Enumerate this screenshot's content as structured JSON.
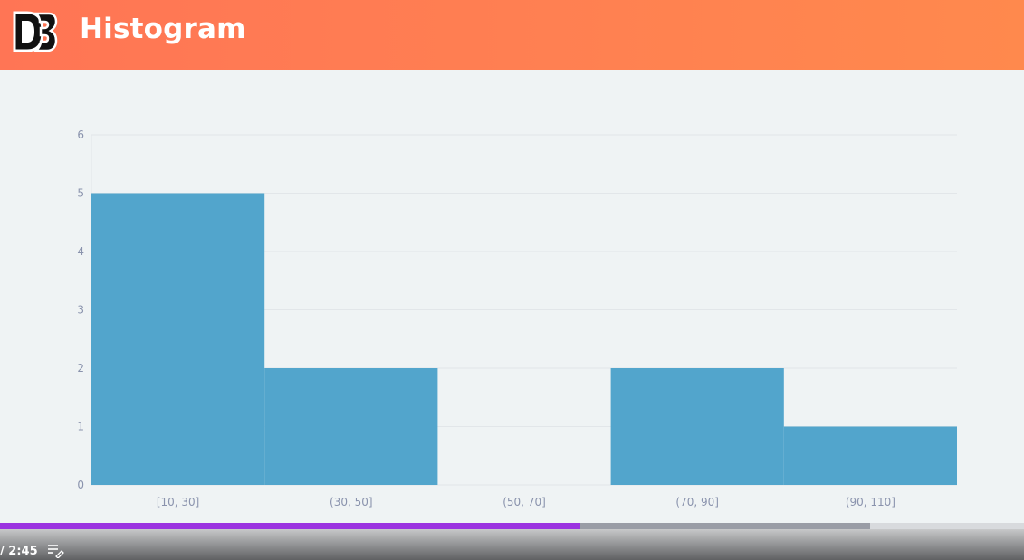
{
  "header": {
    "title": "Histogram",
    "logo_icon": "d3-logo-icon"
  },
  "chart_data": {
    "type": "bar",
    "categories": [
      "[10, 30]",
      "(30, 50]",
      "(50, 70]",
      "(70, 90]",
      "(90, 110]"
    ],
    "values": [
      5,
      2,
      0,
      2,
      1
    ],
    "ylim": [
      0,
      6
    ],
    "yticks": [
      "0",
      "1",
      "2",
      "3",
      "4",
      "5",
      "6"
    ],
    "grid": true,
    "bar_color": "#52a5cc"
  },
  "player": {
    "time_text": "/ 2:45",
    "played_fraction": 0.567,
    "buffered_fraction": 0.85,
    "notes_icon": "playlist-edit-icon",
    "played_color": "#9b33e0"
  }
}
